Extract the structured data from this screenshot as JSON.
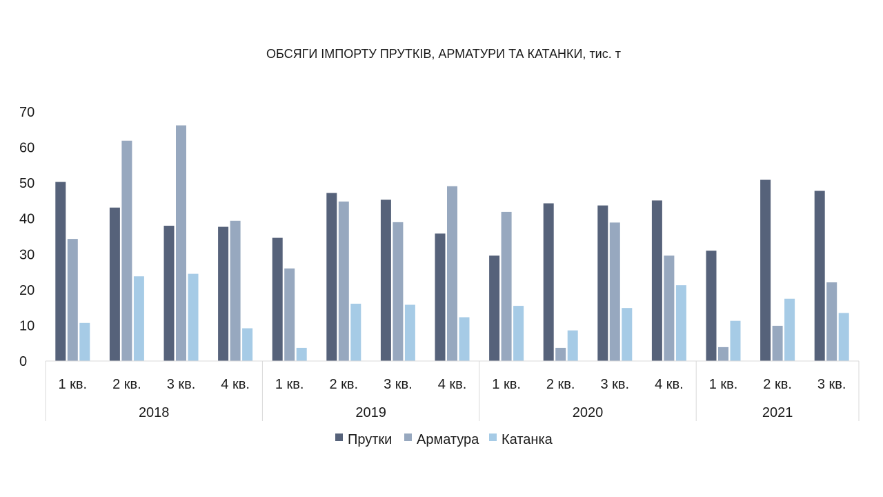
{
  "chart_data": {
    "type": "bar",
    "title": "ОБСЯГИ ІМПОРТУ ПРУТКІВ, АРМАТУРИ ТА КАТАНКИ, тис. т",
    "ylim": [
      0,
      70
    ],
    "yticks": [
      0,
      10,
      20,
      30,
      40,
      50,
      60,
      70
    ],
    "groups": [
      {
        "label": "2018",
        "categories": [
          "1 кв.",
          "2 кв.",
          "3 кв.",
          "4 кв."
        ]
      },
      {
        "label": "2019",
        "categories": [
          "1 кв.",
          "2 кв.",
          "3 кв.",
          "4 кв."
        ]
      },
      {
        "label": "2020",
        "categories": [
          "1 кв.",
          "2 кв.",
          "3 кв.",
          "4 кв."
        ]
      },
      {
        "label": "2021",
        "categories": [
          "1 кв.",
          "2 кв.",
          "3 кв."
        ]
      }
    ],
    "series": [
      {
        "name": "Прутки",
        "color": "#56627a",
        "values": [
          50.3,
          43.1,
          38.0,
          37.7,
          34.6,
          47.2,
          45.3,
          35.8,
          29.6,
          44.3,
          43.7,
          45.1,
          31.0,
          50.9,
          47.8
        ]
      },
      {
        "name": "Арматура",
        "color": "#97a8bf",
        "values": [
          34.3,
          61.9,
          66.2,
          39.4,
          26.0,
          44.8,
          39.0,
          49.1,
          41.9,
          3.7,
          38.9,
          29.6,
          3.9,
          9.9,
          22.1
        ]
      },
      {
        "name": "Катанка",
        "color": "#a6cbe6",
        "values": [
          10.7,
          23.8,
          24.5,
          9.2,
          3.7,
          16.1,
          15.8,
          12.3,
          15.5,
          8.6,
          14.9,
          21.3,
          11.3,
          17.5,
          13.5
        ]
      }
    ],
    "grid": false,
    "legend_position": "bottom"
  }
}
